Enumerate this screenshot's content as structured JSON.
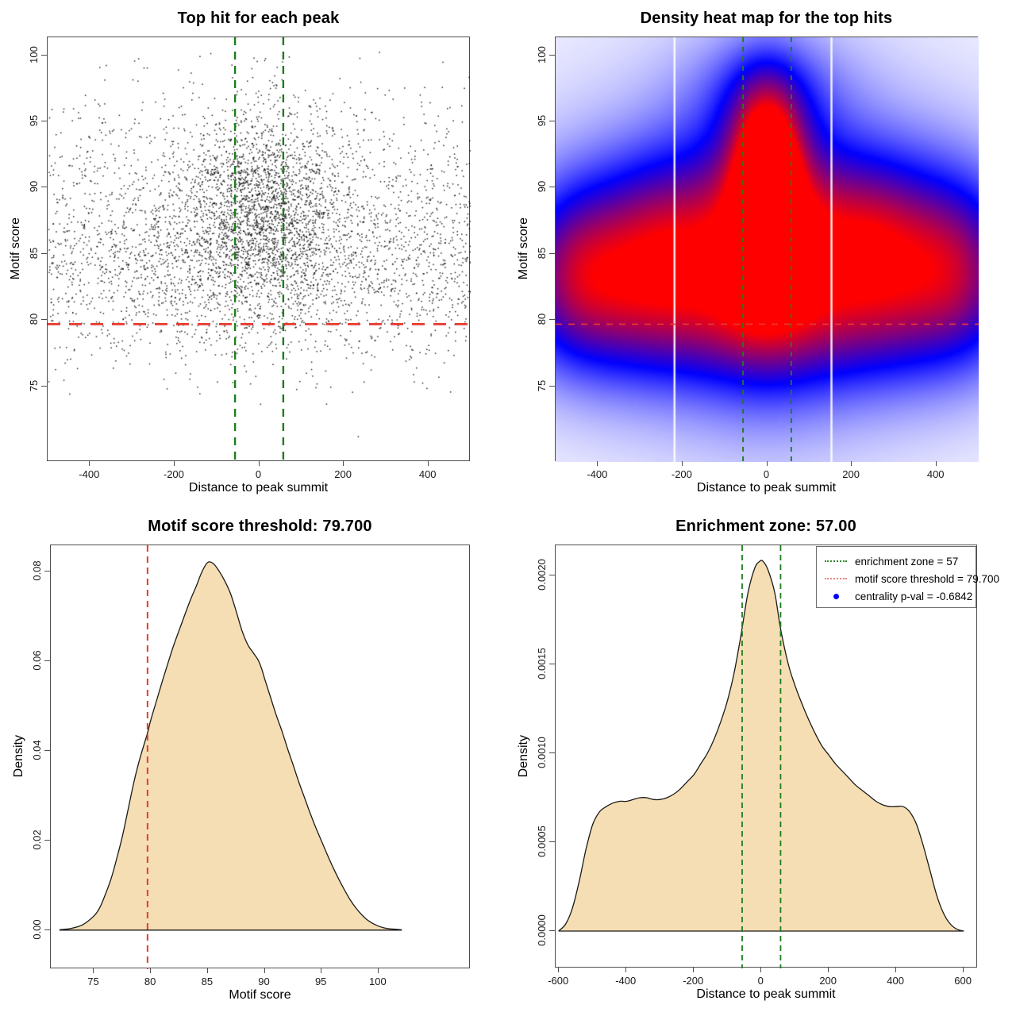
{
  "colors": {
    "background": "#ffffff",
    "box_border": "#4d4d4d",
    "tick_text": "#1a1a1a",
    "green_line": "#1e7d1e",
    "red_line": "#e8392f",
    "legend_green": "#2e8b2e",
    "legend_red": "#f08080",
    "legend_blue_dot": "#0000ff",
    "density_fill": "#f5deb3",
    "density_stroke": "#1a1a1a",
    "scatter_point": "#000000",
    "heatmap_colormap": [
      "#ffffff",
      "#0000ff",
      "#ff0000"
    ]
  },
  "annotations": {
    "motif_score_threshold": 79.7,
    "enrichment_zone": 57,
    "centrality_p_val": -0.6842
  },
  "chart_data": [
    {
      "type": "scatter",
      "title": "Top hit for each peak",
      "xlabel": "Distance to peak summit",
      "ylabel": "Motif score",
      "xlim": [
        -500,
        500
      ],
      "ylim": [
        69.3,
        101.35
      ],
      "x_ticks": [
        -400,
        -200,
        0,
        200,
        400
      ],
      "x_tick_labels": [
        "-400",
        "-200",
        "0",
        "200",
        "400"
      ],
      "y_ticks": [
        75,
        80,
        85,
        90,
        95,
        100
      ],
      "y_tick_labels": [
        "75",
        "80",
        "85",
        "90",
        "95",
        "100"
      ],
      "n_points": 5200,
      "seed": 42,
      "point_clusters": [
        {
          "weight": 0.36,
          "x": {
            "dist": "normal",
            "mean": 0,
            "sd": 95
          },
          "y": {
            "dist": "normal",
            "mean": 88.6,
            "sd": 3.6
          }
        },
        {
          "weight": 0.3,
          "x": {
            "dist": "uniform",
            "min": -500,
            "max": 500
          },
          "y": {
            "dist": "normal",
            "mean": 83.6,
            "sd": 3.6
          }
        },
        {
          "weight": 0.2,
          "x": {
            "dist": "normal",
            "mean": 0,
            "sd": 230
          },
          "y": {
            "dist": "normal",
            "mean": 86.0,
            "sd": 4.2
          }
        },
        {
          "weight": 0.14,
          "x": {
            "dist": "uniform",
            "min": -500,
            "max": 500
          },
          "y": {
            "dist": "normal",
            "mean": 90.5,
            "sd": 4.3
          }
        }
      ],
      "y_clip": [
        73.6,
        100.3
      ],
      "vlines": {
        "values": [
          -57,
          57
        ],
        "color": "#1e7d1e",
        "dash": "10 8",
        "width": 2.4
      },
      "hline": {
        "value": 79.7,
        "color": "#e8392f",
        "dash": "16 11",
        "width": 2.8
      }
    },
    {
      "type": "heatmap",
      "title": "Density heat map for the top hits",
      "xlabel": "Distance to peak summit",
      "ylabel": "Motif score",
      "xlim": [
        -500,
        500
      ],
      "ylim": [
        69.3,
        101.35
      ],
      "x_ticks": [
        -400,
        -200,
        0,
        200,
        400
      ],
      "x_tick_labels": [
        "-400",
        "-200",
        "0",
        "200",
        "400"
      ],
      "y_ticks": [
        75,
        80,
        85,
        90,
        95,
        100
      ],
      "y_tick_labels": [
        "75",
        "80",
        "85",
        "90",
        "95",
        "100"
      ],
      "density_blobs": [
        {
          "x": 0,
          "y": 89.4,
          "sx": 40,
          "sy": 2.7,
          "a": 1.12
        },
        {
          "x": -4,
          "y": 85.1,
          "sx": 36,
          "sy": 1.9,
          "a": 1.02
        },
        {
          "x": 0,
          "y": 87.6,
          "sx": 80,
          "sy": 5.6,
          "a": 0.52
        },
        {
          "x": 0,
          "y": 86.0,
          "sx": 170,
          "sy": 8.0,
          "a": 0.34
        },
        {
          "x": 0,
          "y": 94.6,
          "sx": 60,
          "sy": 3.4,
          "a": 0.4
        },
        {
          "x": 0,
          "y": 97.5,
          "sx": 130,
          "sy": 3.0,
          "a": 0.16
        },
        {
          "x": -205,
          "y": 86.5,
          "sx": 110,
          "sy": 4.5,
          "a": 0.3
        },
        {
          "x": 205,
          "y": 87.0,
          "sx": 115,
          "sy": 4.0,
          "a": 0.28
        },
        {
          "x": -360,
          "y": 84.0,
          "sx": 130,
          "sy": 5.0,
          "a": 0.48
        },
        {
          "x": -470,
          "y": 83.5,
          "sx": 80,
          "sy": 4.2,
          "a": 0.26
        },
        {
          "x": 340,
          "y": 84.5,
          "sx": 140,
          "sy": 5.2,
          "a": 0.46
        },
        {
          "x": 470,
          "y": 83.8,
          "sx": 85,
          "sy": 4.5,
          "a": 0.28
        },
        {
          "x": 0,
          "y": 79.6,
          "sx": 300,
          "sy": 3.4,
          "a": 0.26
        },
        {
          "x": 0,
          "y": 82.5,
          "sx": 430,
          "sy": 6.0,
          "a": 0.22
        },
        {
          "x": 0,
          "y": 86.0,
          "sx": 520,
          "sy": 12.0,
          "a": 0.15
        }
      ],
      "white_gap_lines": [
        -219,
        152
      ],
      "vlines": {
        "values": [
          -57,
          57
        ],
        "color": "#1e7d1e",
        "dash": "6 6",
        "width": 1.9
      },
      "hline": {
        "value": 79.7,
        "color": "#e8392f",
        "dash": "8 8",
        "width": 1.6
      }
    },
    {
      "type": "density",
      "title": "Motif score threshold: 79.700",
      "xlabel": "Motif score",
      "ylabel": "Density",
      "xlim": [
        71.2,
        108.1
      ],
      "ylim": [
        -0.0087,
        0.0858
      ],
      "x_ticks": [
        75,
        80,
        85,
        90,
        95,
        100
      ],
      "x_tick_labels": [
        "75",
        "80",
        "85",
        "90",
        "95",
        "100"
      ],
      "y_ticks": [
        0,
        0.02,
        0.04,
        0.06,
        0.08
      ],
      "y_tick_labels": [
        "0.00",
        "0.02",
        "0.04",
        "0.06",
        "0.08"
      ],
      "curve": [
        [
          72,
          0.0001
        ],
        [
          73,
          0.0004
        ],
        [
          74,
          0.0012
        ],
        [
          75,
          0.0032
        ],
        [
          75.5,
          0.005
        ],
        [
          76,
          0.008
        ],
        [
          76.5,
          0.0115
        ],
        [
          77,
          0.016
        ],
        [
          77.5,
          0.021
        ],
        [
          78,
          0.027
        ],
        [
          78.5,
          0.033
        ],
        [
          79,
          0.038
        ],
        [
          79.7,
          0.044
        ],
        [
          80,
          0.047
        ],
        [
          80.5,
          0.0512
        ],
        [
          81,
          0.0555
        ],
        [
          81.5,
          0.0596
        ],
        [
          82,
          0.0635
        ],
        [
          82.5,
          0.067
        ],
        [
          83,
          0.0705
        ],
        [
          83.5,
          0.0738
        ],
        [
          84,
          0.0768
        ],
        [
          84.5,
          0.08
        ],
        [
          85,
          0.082
        ],
        [
          85.5,
          0.0817
        ],
        [
          86,
          0.08
        ],
        [
          86.5,
          0.0778
        ],
        [
          87,
          0.075
        ],
        [
          87.5,
          0.071
        ],
        [
          88,
          0.0668
        ],
        [
          88.5,
          0.0637
        ],
        [
          89,
          0.0618
        ],
        [
          89.4,
          0.0603
        ],
        [
          89.7,
          0.0585
        ],
        [
          90,
          0.056
        ],
        [
          90.5,
          0.052
        ],
        [
          91,
          0.048
        ],
        [
          91.5,
          0.0445
        ],
        [
          92,
          0.0405
        ],
        [
          92.5,
          0.0368
        ],
        [
          93,
          0.033
        ],
        [
          93.5,
          0.0295
        ],
        [
          94,
          0.026
        ],
        [
          94.5,
          0.0228
        ],
        [
          95,
          0.0198
        ],
        [
          95.5,
          0.0168
        ],
        [
          96,
          0.014
        ],
        [
          96.5,
          0.0114
        ],
        [
          97,
          0.009
        ],
        [
          97.5,
          0.0068
        ],
        [
          98,
          0.005
        ],
        [
          98.5,
          0.0035
        ],
        [
          99,
          0.0023
        ],
        [
          99.5,
          0.0015
        ],
        [
          100,
          0.0009
        ],
        [
          100.5,
          0.0005
        ],
        [
          101,
          0.0003
        ],
        [
          101.5,
          0.0002
        ],
        [
          102,
          0.0001
        ]
      ],
      "vlines": {
        "values": [
          79.7
        ],
        "color": "#e8392f",
        "dash": "8 6",
        "width": 2
      }
    },
    {
      "type": "density",
      "title": "Enrichment zone: 57.00",
      "xlabel": "Distance to peak summit",
      "ylabel": "Density",
      "xlim": [
        -610,
        642
      ],
      "ylim": [
        -0.00021,
        0.00217
      ],
      "x_ticks": [
        -600,
        -400,
        -200,
        0,
        200,
        400,
        600
      ],
      "x_tick_labels": [
        "-600",
        "-400",
        "-200",
        "0",
        "200",
        "400",
        "600"
      ],
      "y_ticks": [
        0,
        0.0005,
        0.001,
        0.0015,
        0.002
      ],
      "y_tick_labels": [
        "0.0000",
        "0.0005",
        "0.0010",
        "0.0015",
        "0.0020"
      ],
      "curve": [
        [
          -600,
          2e-06
        ],
        [
          -580,
          4e-05
        ],
        [
          -560,
          0.00013
        ],
        [
          -540,
          0.00028
        ],
        [
          -520,
          0.00046
        ],
        [
          -500,
          0.0006
        ],
        [
          -480,
          0.00067
        ],
        [
          -460,
          0.0007
        ],
        [
          -440,
          0.00072
        ],
        [
          -420,
          0.00073
        ],
        [
          -400,
          0.00073
        ],
        [
          -380,
          0.00074
        ],
        [
          -360,
          0.00075
        ],
        [
          -340,
          0.00075
        ],
        [
          -320,
          0.00074
        ],
        [
          -300,
          0.00074
        ],
        [
          -280,
          0.00075
        ],
        [
          -260,
          0.00077
        ],
        [
          -240,
          0.0008
        ],
        [
          -220,
          0.00084
        ],
        [
          -200,
          0.00088
        ],
        [
          -180,
          0.00094
        ],
        [
          -160,
          0.001
        ],
        [
          -140,
          0.00108
        ],
        [
          -120,
          0.00118
        ],
        [
          -100,
          0.0013
        ],
        [
          -80,
          0.00146
        ],
        [
          -60,
          0.00167
        ],
        [
          -40,
          0.0019
        ],
        [
          -20,
          0.00204
        ],
        [
          -5,
          0.00208
        ],
        [
          5,
          0.00208
        ],
        [
          20,
          0.00203
        ],
        [
          40,
          0.0019
        ],
        [
          57,
          0.0017
        ],
        [
          80,
          0.0015
        ],
        [
          100,
          0.00138
        ],
        [
          120,
          0.00128
        ],
        [
          140,
          0.00119
        ],
        [
          160,
          0.00111
        ],
        [
          180,
          0.00104
        ],
        [
          200,
          0.00099
        ],
        [
          220,
          0.00094
        ],
        [
          240,
          0.0009
        ],
        [
          260,
          0.00086
        ],
        [
          280,
          0.00082
        ],
        [
          300,
          0.00079
        ],
        [
          320,
          0.00076
        ],
        [
          340,
          0.00073
        ],
        [
          360,
          0.00071
        ],
        [
          380,
          0.0007
        ],
        [
          400,
          0.0007
        ],
        [
          420,
          0.0007
        ],
        [
          440,
          0.00067
        ],
        [
          460,
          0.0006
        ],
        [
          480,
          0.00048
        ],
        [
          500,
          0.00034
        ],
        [
          520,
          0.0002
        ],
        [
          540,
          0.0001
        ],
        [
          560,
          4e-05
        ],
        [
          580,
          1e-05
        ],
        [
          600,
          0
        ]
      ],
      "vlines": {
        "values": [
          -57,
          57
        ],
        "color": "#1e7d1e",
        "dash": "7 5",
        "width": 1.8
      },
      "legend": {
        "items": [
          {
            "swatch": "dotted-line",
            "color": "#2e8b2e",
            "label": "enrichment zone = 57"
          },
          {
            "swatch": "dotted-line",
            "color": "#f08080",
            "label": "motif score threshold = 79.700"
          },
          {
            "swatch": "dot",
            "color": "#0000ff",
            "label": "centrality p-val = -0.6842"
          }
        ]
      }
    }
  ]
}
